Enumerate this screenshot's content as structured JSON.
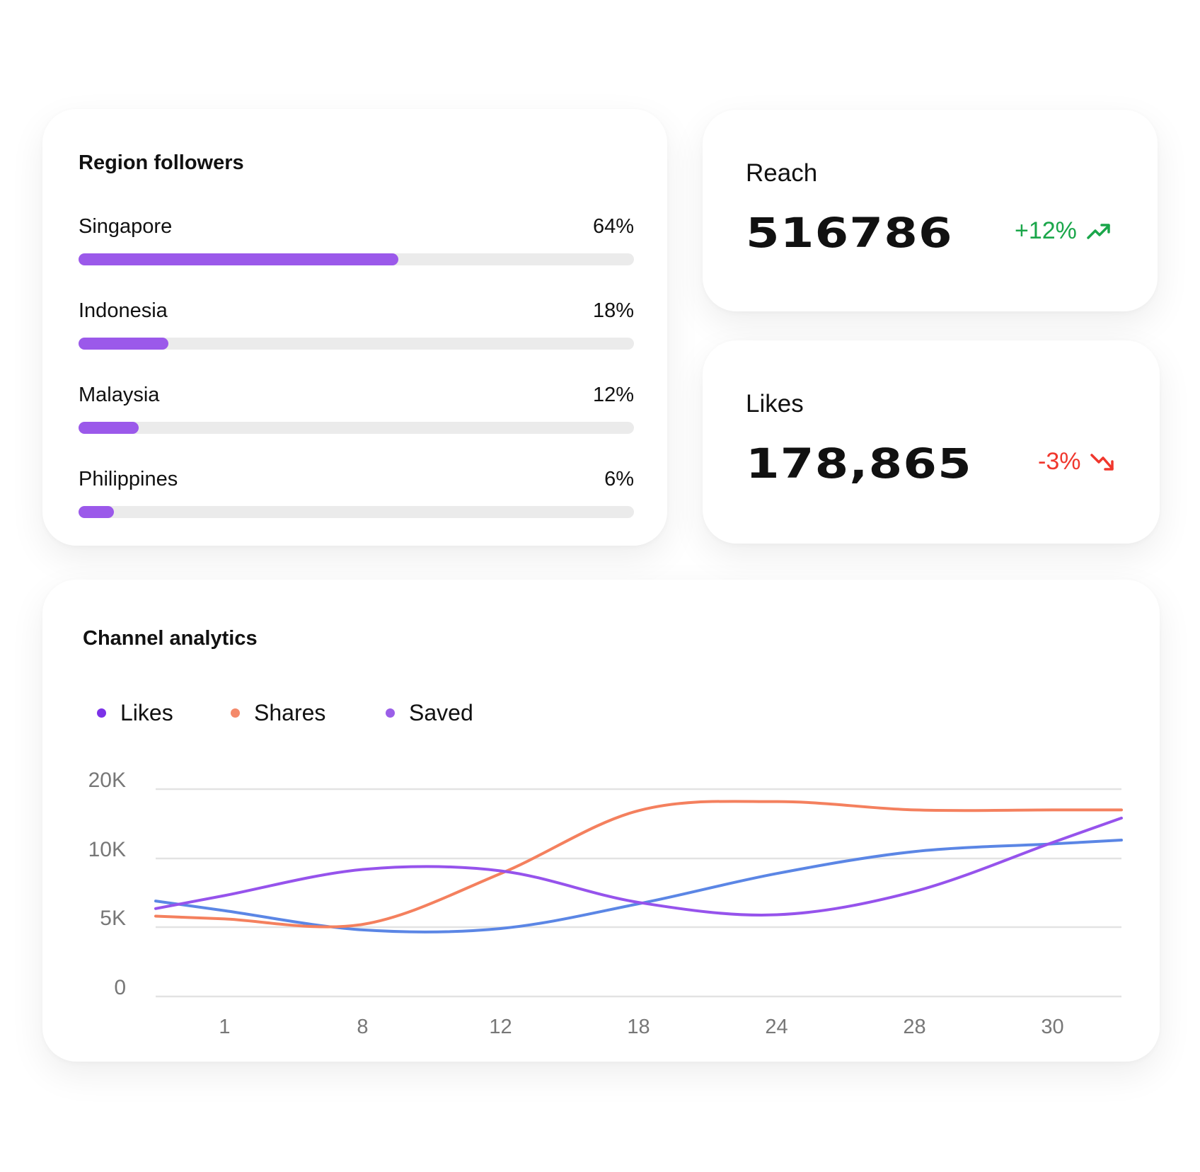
{
  "region_followers": {
    "title": "Region followers",
    "bar_color": "#9b59ea",
    "items": [
      {
        "name": "Singapore",
        "percent_label": "64%",
        "value": 64
      },
      {
        "name": "Indonesia",
        "percent_label": "18%",
        "value": 18
      },
      {
        "name": "Malaysia",
        "percent_label": "12%",
        "value": 12
      },
      {
        "name": "Philippines",
        "percent_label": "6%",
        "value": 6
      }
    ]
  },
  "reach": {
    "label": "Reach",
    "value": "516786",
    "change": "+12%",
    "trend": "up",
    "color": "#1aa64a",
    "icon": "trending-up-icon"
  },
  "likes": {
    "label": "Likes",
    "value": "178,865",
    "change": "-3%",
    "trend": "down",
    "color": "#f0372d",
    "icon": "trending-down-icon"
  },
  "chart_data": {
    "type": "line",
    "title": "Channel analytics",
    "legend": [
      {
        "label": "Likes",
        "color": "#7c32e8"
      },
      {
        "label": "Shares",
        "color": "#f4896a"
      },
      {
        "label": "Saved",
        "color": "#9b5fe8"
      }
    ],
    "legend_placement": "top-left",
    "categories": [
      "1",
      "8",
      "12",
      "18",
      "24",
      "28",
      "30"
    ],
    "y_ticks": [
      "20K",
      "10K",
      "5K",
      "0"
    ],
    "y_tick_values": [
      20000,
      10000,
      5000,
      0
    ],
    "grid": true,
    "series": [
      {
        "color": "#5b86e5",
        "values": [
          6200,
          4800,
          4900,
          6700,
          8900,
          11000,
          12100
        ]
      },
      {
        "color": "#f4805e",
        "values": [
          5600,
          5200,
          8900,
          16900,
          18200,
          17000,
          17000
        ]
      },
      {
        "color": "#9653ec",
        "values": [
          7300,
          9200,
          9100,
          6800,
          5900,
          7600,
          12300
        ]
      }
    ]
  }
}
